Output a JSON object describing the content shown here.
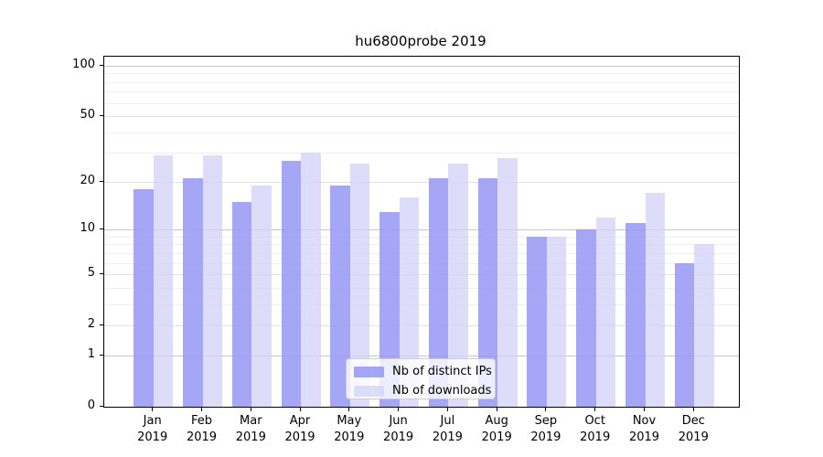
{
  "chart_data": {
    "type": "bar",
    "title": "hu6800probe 2019",
    "categories": [
      "Jan",
      "Feb",
      "Mar",
      "Apr",
      "May",
      "Jun",
      "Jul",
      "Aug",
      "Sep",
      "Oct",
      "Nov",
      "Dec"
    ],
    "x_tick_year": "2019",
    "series": [
      {
        "name": "Nb of distinct IPs",
        "color": "rgba(150,150,245,0.85)",
        "values": [
          18,
          21,
          15,
          27,
          19,
          13,
          21,
          21,
          9,
          10,
          11,
          6
        ]
      },
      {
        "name": "Nb of downloads",
        "color": "rgba(210,210,248,0.75)",
        "values": [
          29,
          29,
          19,
          30,
          26,
          16,
          26,
          28,
          9,
          12,
          17,
          8
        ]
      }
    ],
    "yscale": "log1p",
    "ylim": [
      0,
      113
    ],
    "yticks": [
      0,
      1,
      2,
      5,
      10,
      20,
      50,
      100
    ],
    "yticks_minor": [
      3,
      4,
      6,
      7,
      8,
      9,
      30,
      40,
      60,
      70,
      80,
      90
    ],
    "grid": {
      "on": true,
      "decade_color": "#c6c6c6",
      "mid_color": "#e2e2e2",
      "minor_color": "#efefef"
    },
    "legend_position": "lower center",
    "xlabel": "",
    "ylabel": ""
  }
}
